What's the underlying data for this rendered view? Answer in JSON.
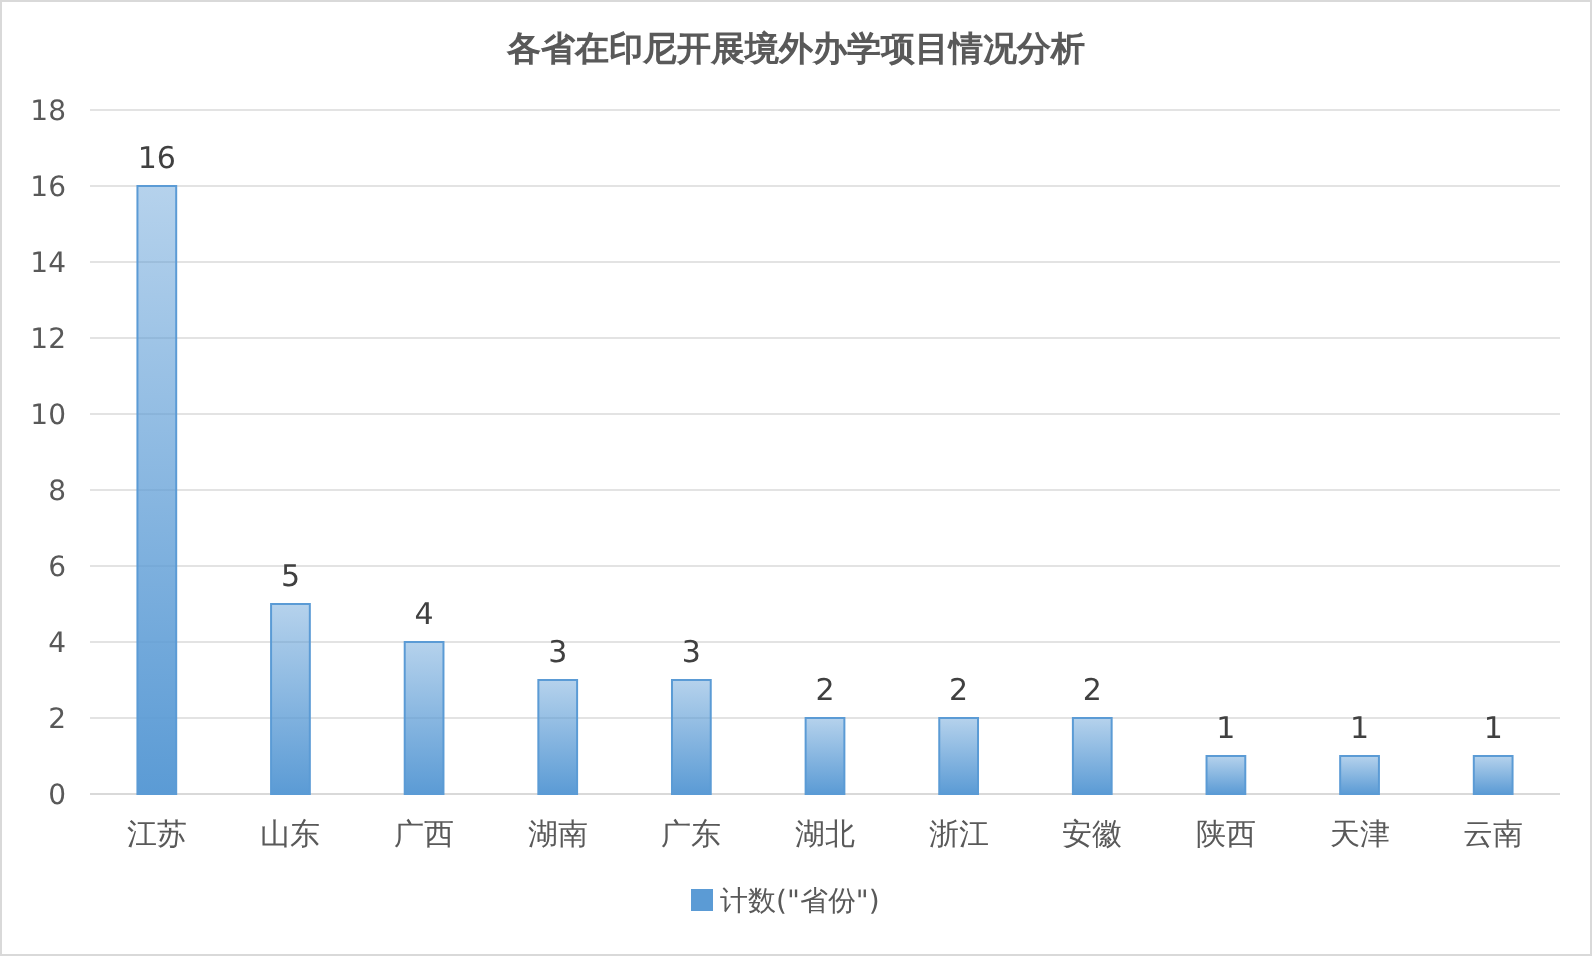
{
  "chart_data": {
    "type": "bar",
    "title": "各省在印尼开展境外办学项目情况分析",
    "categories": [
      "江苏",
      "山东",
      "广西",
      "湖南",
      "广东",
      "湖北",
      "浙江",
      "安徽",
      "陕西",
      "天津",
      "云南"
    ],
    "series": [
      {
        "name": "计数(\"省份\")",
        "color": "#5b9bd5",
        "values": [
          16,
          5,
          4,
          3,
          3,
          2,
          2,
          2,
          1,
          1,
          1
        ]
      }
    ],
    "ylim": [
      0,
      18
    ],
    "yticks": [
      0,
      2,
      4,
      6,
      8,
      10,
      12,
      14,
      16,
      18
    ],
    "grid": "y",
    "legend": "bottom",
    "data_labels": true
  }
}
